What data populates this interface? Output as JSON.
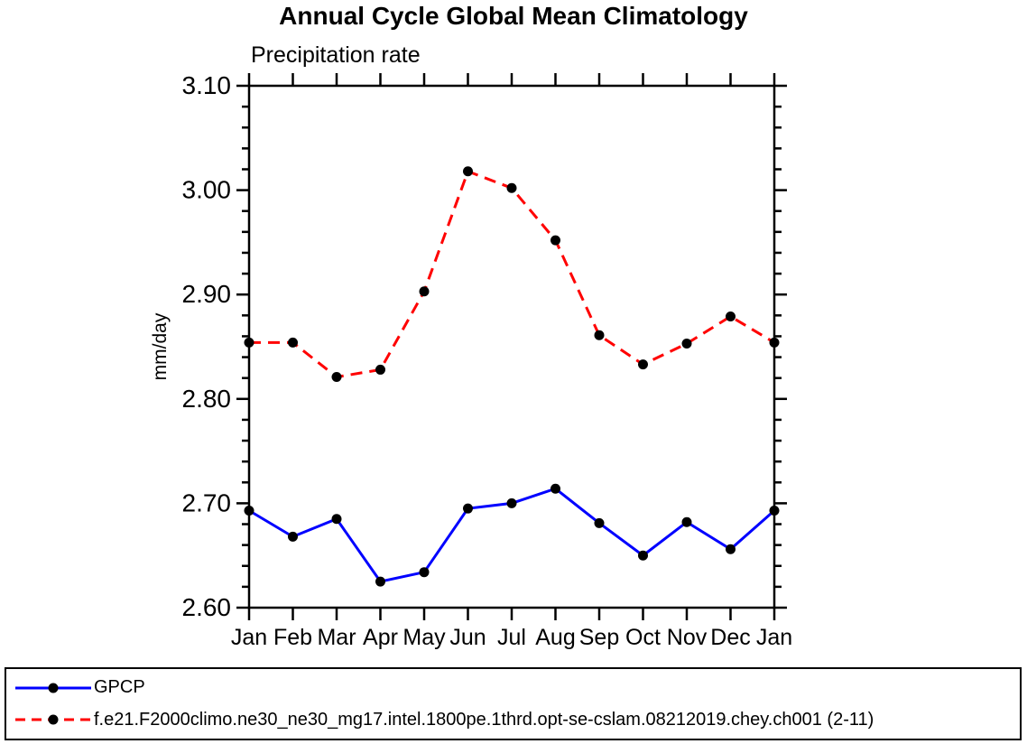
{
  "chart_data": {
    "type": "line",
    "title": "Annual Cycle Global Mean Climatology",
    "subtitle": "Precipitation rate",
    "ylabel": "mm/day",
    "ylim": [
      2.6,
      3.1
    ],
    "ytick_major": 0.1,
    "ytick_minor": 0.02,
    "ytick_label_format": "2dp",
    "grid": false,
    "frame": "full-box-outward-ticks",
    "legend_position": "bottom-full-width-box",
    "categories": [
      "Jan",
      "Feb",
      "Mar",
      "Apr",
      "May",
      "Jun",
      "Jul",
      "Aug",
      "Sep",
      "Oct",
      "Nov",
      "Dec",
      "Jan"
    ],
    "series": [
      {
        "name": "GPCP",
        "color": "#0000FF",
        "line_style": "solid",
        "marker": "circle",
        "marker_color": "#000000",
        "values": [
          2.693,
          2.668,
          2.685,
          2.625,
          2.634,
          2.695,
          2.7,
          2.714,
          2.681,
          2.65,
          2.682,
          2.656,
          2.693
        ]
      },
      {
        "name": "f.e21.F2000climo.ne30_ne30_mg17.intel.1800pe.1thrd.opt-se-cslam.08212019.chey.ch001 (2-11)",
        "color": "#FF0000",
        "line_style": "dashed",
        "marker": "circle",
        "marker_color": "#000000",
        "values": [
          2.854,
          2.854,
          2.821,
          2.828,
          2.903,
          3.018,
          3.002,
          2.952,
          2.861,
          2.833,
          2.853,
          2.879,
          2.854
        ]
      }
    ]
  }
}
